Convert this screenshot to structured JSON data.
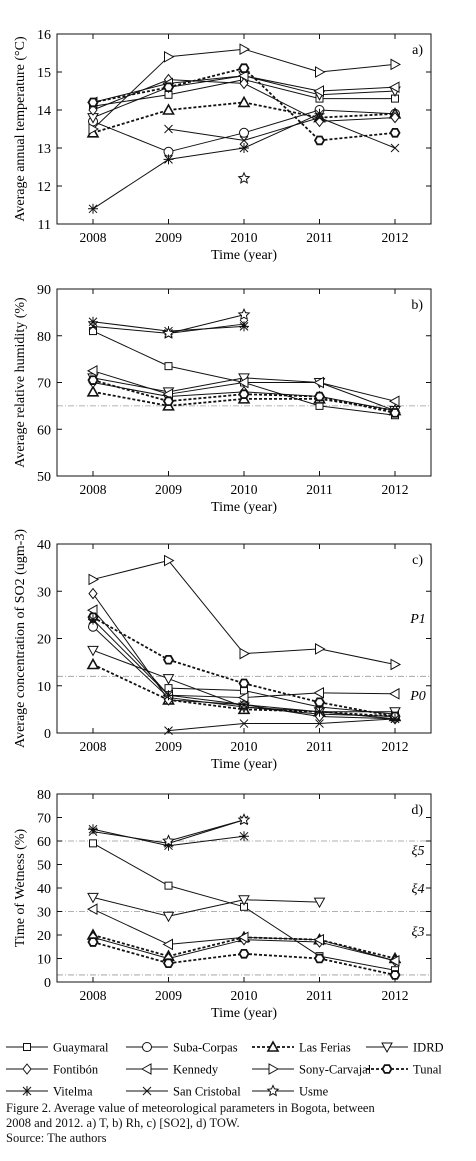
{
  "series_styles": {
    "Guaymaral": {
      "marker": "square",
      "dash": false,
      "bold": false
    },
    "Suba-Corpas": {
      "marker": "circle",
      "dash": false,
      "bold": false
    },
    "Las Ferias": {
      "marker": "tri-up",
      "dash": true,
      "bold": true
    },
    "IDRD": {
      "marker": "tri-down",
      "dash": false,
      "bold": false
    },
    "Fontibón": {
      "marker": "diamond",
      "dash": false,
      "bold": false
    },
    "Kennedy": {
      "marker": "tri-left",
      "dash": false,
      "bold": false
    },
    "Sony-Carvajal": {
      "marker": "tri-right",
      "dash": false,
      "bold": false
    },
    "Tunal": {
      "marker": "hexagon",
      "dash": true,
      "bold": true
    },
    "Vitelma": {
      "marker": "asterisk",
      "dash": false,
      "bold": false
    },
    "San Cristobal": {
      "marker": "x",
      "dash": false,
      "bold": false
    },
    "Usme": {
      "marker": "star",
      "dash": false,
      "bold": false
    }
  },
  "chart_data": [
    {
      "type": "line",
      "panel_label": "a)",
      "ylabel": "Average annual temperature (°C)",
      "xlabel": "Time (year)",
      "x": [
        2008,
        2009,
        2010,
        2011,
        2012
      ],
      "ylim": [
        11,
        16
      ],
      "yticks": [
        11,
        12,
        13,
        14,
        15,
        16
      ],
      "series": [
        {
          "name": "Guaymaral",
          "values": [
            14.1,
            14.4,
            14.8,
            14.3,
            14.3
          ]
        },
        {
          "name": "Suba-Corpas",
          "values": [
            13.7,
            12.9,
            13.4,
            14.0,
            13.9
          ]
        },
        {
          "name": "Las Ferias",
          "values": [
            13.4,
            14.0,
            14.2,
            13.8,
            13.9
          ]
        },
        {
          "name": "IDRD",
          "values": [
            13.8,
            14.6,
            14.9,
            14.4,
            14.5
          ]
        },
        {
          "name": "Fontibón",
          "values": [
            14.0,
            14.8,
            14.7,
            13.7,
            13.8
          ]
        },
        {
          "name": "Kennedy",
          "values": [
            14.2,
            14.7,
            14.9,
            14.5,
            14.6
          ]
        },
        {
          "name": "Sony-Carvajal",
          "values": [
            13.5,
            15.4,
            15.6,
            15.0,
            15.2
          ]
        },
        {
          "name": "Tunal",
          "values": [
            14.2,
            14.6,
            15.1,
            13.2,
            13.4
          ]
        },
        {
          "name": "Vitelma",
          "values": [
            11.4,
            12.7,
            13.0,
            13.9,
            null
          ]
        },
        {
          "name": "San Cristobal",
          "values": [
            null,
            13.5,
            13.2,
            13.8,
            13.0
          ]
        },
        {
          "name": "Usme",
          "values": [
            null,
            null,
            12.2,
            null,
            null
          ]
        }
      ]
    },
    {
      "type": "line",
      "panel_label": "b)",
      "ylabel": "Average relative humidity (%)",
      "xlabel": "Time (year)",
      "x": [
        2008,
        2009,
        2010,
        2011,
        2012
      ],
      "ylim": [
        50,
        90
      ],
      "yticks": [
        50,
        60,
        70,
        80,
        90
      ],
      "reference_lines": [
        65
      ],
      "series": [
        {
          "name": "Guaymaral",
          "values": [
            81,
            73.5,
            70,
            65,
            63
          ]
        },
        {
          "name": "Las Ferias",
          "values": [
            68,
            65,
            66.5,
            66.5,
            64
          ]
        },
        {
          "name": "IDRD",
          "values": [
            71,
            68,
            71,
            70,
            64
          ]
        },
        {
          "name": "Fontibón",
          "values": [
            70,
            67,
            68,
            67,
            64
          ]
        },
        {
          "name": "Kennedy",
          "values": [
            72.5,
            67.5,
            70,
            70,
            66
          ]
        },
        {
          "name": "Tunal",
          "values": [
            70.5,
            66,
            67.5,
            67,
            63.5
          ]
        },
        {
          "name": "Vitelma",
          "values": [
            83,
            81,
            82,
            null,
            null
          ]
        },
        {
          "name": "San Cristobal",
          "values": [
            82,
            80.5,
            82.5,
            null,
            null
          ]
        },
        {
          "name": "Usme",
          "values": [
            null,
            80.5,
            84.5,
            null,
            null
          ]
        }
      ]
    },
    {
      "type": "line",
      "panel_label": "c)",
      "ylabel": "Average concentration of SO2 (ugm-3)",
      "xlabel": "Time (year)",
      "x": [
        2008,
        2009,
        2010,
        2011,
        2012
      ],
      "ylim": [
        0,
        40
      ],
      "yticks": [
        0,
        10,
        20,
        30,
        40
      ],
      "reference_lines": [
        12
      ],
      "annotations": [
        "P1",
        "P0"
      ],
      "series": [
        {
          "name": "Guaymaral",
          "values": [
            null,
            9.5,
            9.0,
            5.5,
            4.0
          ]
        },
        {
          "name": "Suba-Corpas",
          "values": [
            22.5,
            7.5,
            5.5,
            4.0,
            3.5
          ]
        },
        {
          "name": "Las Ferias",
          "values": [
            14.5,
            7.0,
            5.0,
            4.5,
            3.5
          ]
        },
        {
          "name": "IDRD",
          "values": [
            17.5,
            11.5,
            5.5,
            4.5,
            4.5
          ]
        },
        {
          "name": "Fontibón",
          "values": [
            29.5,
            7.0,
            6.0,
            3.5,
            3.0
          ]
        },
        {
          "name": "Kennedy",
          "values": [
            26.0,
            8.0,
            7.5,
            8.5,
            8.3
          ]
        },
        {
          "name": "Sony-Carvajal",
          "values": [
            32.5,
            36.5,
            16.8,
            17.8,
            14.5
          ]
        },
        {
          "name": "Tunal",
          "values": [
            24.5,
            15.5,
            10.5,
            6.5,
            3.5
          ]
        },
        {
          "name": "Vitelma",
          "values": [
            24.0,
            8.0,
            6.0,
            4.5,
            3.0
          ]
        },
        {
          "name": "San Cristobal",
          "values": [
            null,
            0.5,
            2.0,
            2.0,
            3.0
          ]
        }
      ]
    },
    {
      "type": "line",
      "panel_label": "d)",
      "ylabel": "Time of Wetness (%)",
      "xlabel": "Time (year)",
      "x": [
        2008,
        2009,
        2010,
        2011,
        2012
      ],
      "ylim": [
        0,
        80
      ],
      "yticks": [
        0,
        10,
        20,
        30,
        40,
        50,
        60,
        70,
        80
      ],
      "reference_lines": [
        60,
        30,
        3
      ],
      "annotations": [
        "ξ5",
        "ξ4",
        "ξ3"
      ],
      "series": [
        {
          "name": "Guaymaral",
          "values": [
            59,
            41,
            32,
            11,
            5
          ]
        },
        {
          "name": "Las Ferias",
          "values": [
            20,
            11,
            19,
            18,
            10
          ]
        },
        {
          "name": "IDRD",
          "values": [
            36,
            28,
            35,
            34,
            null
          ]
        },
        {
          "name": "Fontibón",
          "values": [
            19,
            10,
            18,
            17,
            9
          ]
        },
        {
          "name": "Kennedy",
          "values": [
            31,
            16,
            19,
            18,
            9
          ]
        },
        {
          "name": "Tunal",
          "values": [
            17,
            8,
            12,
            10,
            3
          ]
        },
        {
          "name": "Vitelma",
          "values": [
            65,
            58,
            62,
            null,
            null
          ]
        },
        {
          "name": "San Cristobal",
          "values": [
            64,
            59,
            69,
            null,
            null
          ]
        },
        {
          "name": "Usme",
          "values": [
            null,
            60,
            69,
            null,
            null
          ]
        }
      ]
    }
  ],
  "legend": [
    "Guaymaral",
    "Suba-Corpas",
    "Las Ferias",
    "IDRD",
    "Fontibón",
    "Kennedy",
    "Sony-Carvajal",
    "Tunal",
    "Vitelma",
    "San Cristobal",
    "Usme"
  ],
  "caption": {
    "line1": "Figure 2. Average value of meteorological parameters in Bogota, between",
    "line2": "2008 and 2012. a) T, b) Rh, c) [SO2], d) TOW.",
    "source": "Source: The authors"
  }
}
